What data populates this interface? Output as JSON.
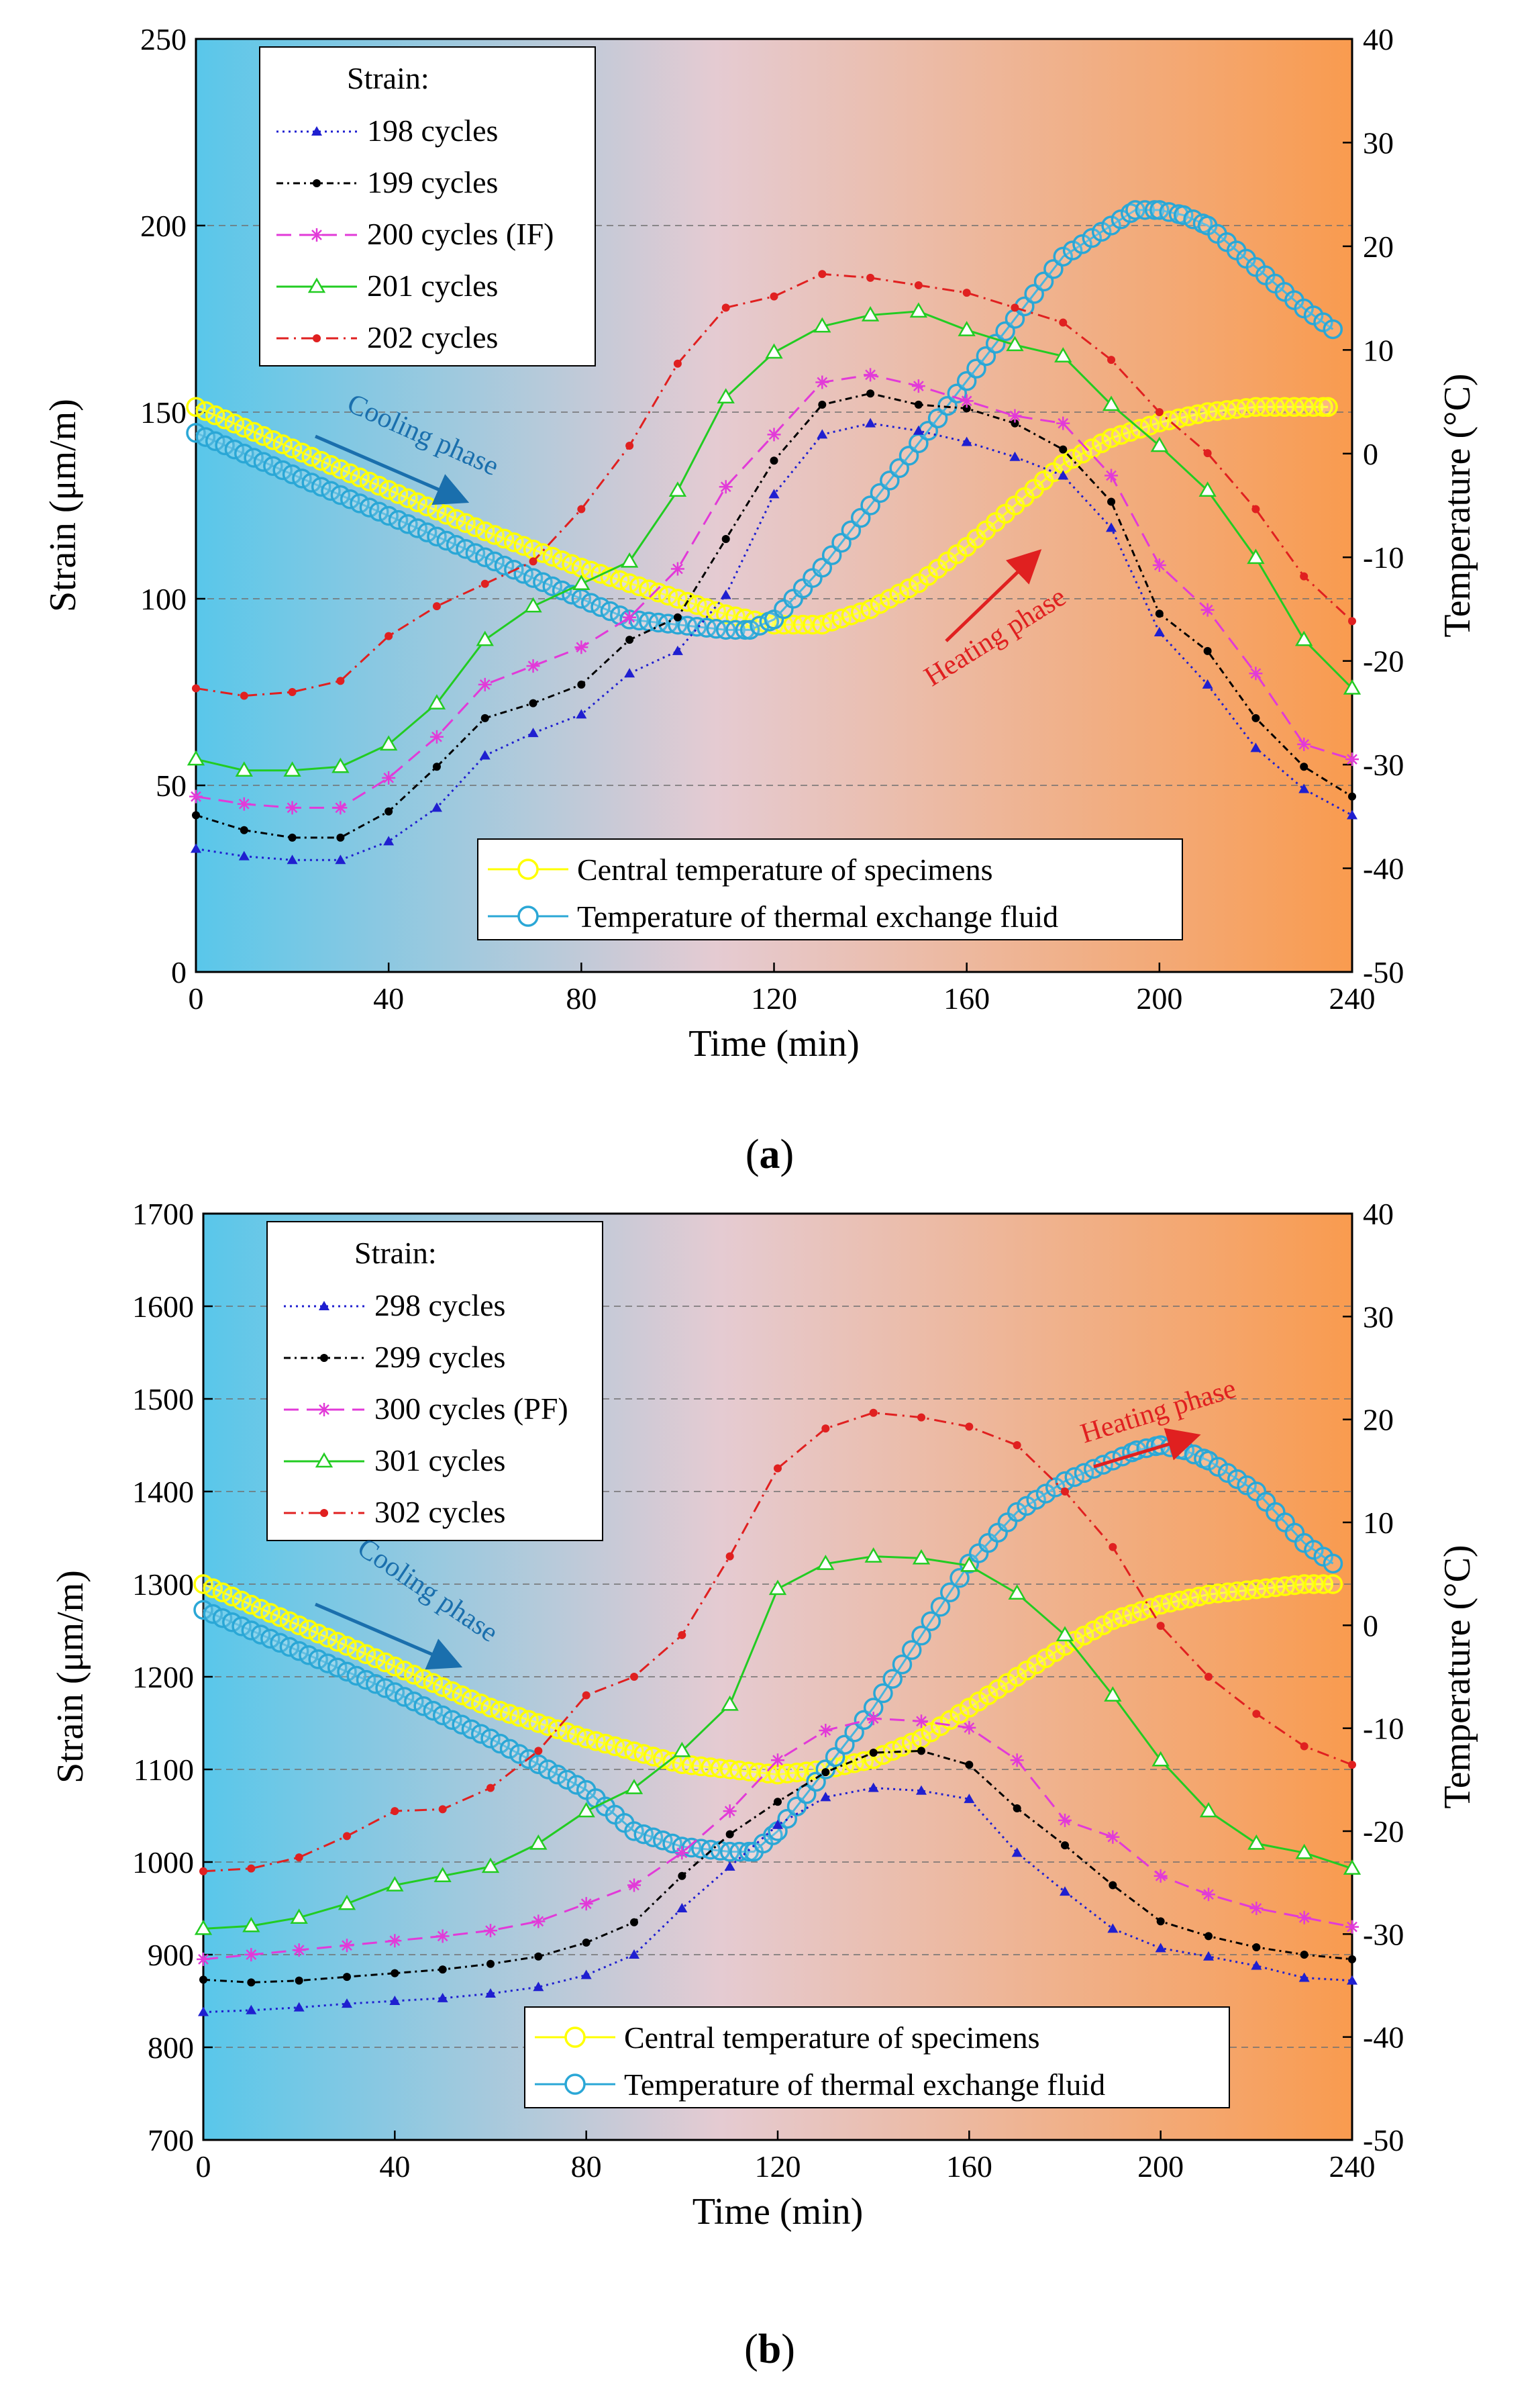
{
  "figure": {
    "panels": [
      {
        "caption_letter": "a",
        "legend_title": "Strain:",
        "annotations": [
          "Cooling phase",
          "Heating phase"
        ],
        "temp_legend": [
          "Central temperature of specimens",
          "Temperature of thermal exchange fluid"
        ]
      },
      {
        "caption_letter": "b",
        "legend_title": "Strain:",
        "annotations": [
          "Cooling phase",
          "Heating phase"
        ],
        "temp_legend": [
          "Central temperature of specimens",
          "Temperature of thermal exchange fluid"
        ]
      }
    ]
  },
  "colors": {
    "cool": "#5bc8ea",
    "warm": "#f9a056",
    "blue_series": "#1f1fd0",
    "black_series": "#000000",
    "magenta_series": "#e23ad8",
    "green_series": "#22cc22",
    "red_series": "#e02020",
    "central_temp": "#ffff00",
    "fluid_temp": "#2aa7d6",
    "cooling_arrow": "#1a6fad",
    "heating_arrow": "#e02020"
  },
  "chart_data": [
    {
      "type": "line",
      "id": "a",
      "xlabel": "Time (min)",
      "ylabel": "Strain (μm/m)",
      "y2label": "Temperature (°C)",
      "xlim": [
        0,
        240
      ],
      "ylim": [
        0,
        250
      ],
      "y2lim": [
        -50,
        40
      ],
      "xticks": [
        0,
        40,
        80,
        120,
        160,
        200,
        240
      ],
      "yticks": [
        0,
        50,
        100,
        150,
        200,
        250
      ],
      "y2ticks": [
        -50,
        -40,
        -30,
        -20,
        -10,
        0,
        10,
        20,
        30,
        40
      ],
      "grid_y": [
        50,
        100,
        150,
        200
      ],
      "x": [
        0,
        10,
        20,
        30,
        40,
        50,
        60,
        70,
        80,
        90,
        100,
        110,
        120,
        130,
        140,
        150,
        160,
        170,
        180,
        190,
        200,
        210,
        220,
        230,
        240
      ],
      "series": [
        {
          "name": "198 cycles",
          "style": "blue-dotted-triangle",
          "values": [
            33,
            31,
            30,
            30,
            35,
            44,
            58,
            64,
            69,
            80,
            86,
            101,
            128,
            144,
            147,
            145,
            142,
            138,
            133,
            119,
            91,
            77,
            60,
            49,
            42
          ]
        },
        {
          "name": "199 cycles",
          "style": "black-dashdot-dot",
          "values": [
            42,
            38,
            36,
            36,
            43,
            55,
            68,
            72,
            77,
            89,
            95,
            116,
            137,
            152,
            155,
            152,
            151,
            147,
            140,
            126,
            96,
            86,
            68,
            55,
            47
          ]
        },
        {
          "name": "200 cycles (IF)",
          "style": "magenta-dashed-star",
          "values": [
            47,
            45,
            44,
            44,
            52,
            63,
            77,
            82,
            87,
            95,
            108,
            130,
            144,
            158,
            160,
            157,
            153,
            149,
            147,
            133,
            109,
            97,
            80,
            61,
            57
          ]
        },
        {
          "name": "201 cycles",
          "style": "green-solid-opentriangle",
          "values": [
            57,
            54,
            54,
            55,
            61,
            72,
            89,
            98,
            104,
            110,
            129,
            154,
            166,
            173,
            176,
            177,
            172,
            168,
            165,
            152,
            141,
            129,
            111,
            89,
            76
          ]
        },
        {
          "name": "202 cycles",
          "style": "red-dashdot-dot",
          "values": [
            76,
            74,
            75,
            78,
            90,
            98,
            104,
            110,
            124,
            141,
            163,
            178,
            181,
            187,
            186,
            184,
            182,
            178,
            174,
            164,
            150,
            139,
            124,
            106,
            94
          ]
        }
      ],
      "temperature_series": [
        {
          "name": "Central temperature of specimens",
          "x": [
            0,
            20,
            40,
            60,
            80,
            100,
            110,
            120,
            130,
            140,
            150,
            160,
            170,
            180,
            190,
            200,
            210,
            220,
            230,
            235
          ],
          "values": [
            4.5,
            0.5,
            -3.5,
            -7.5,
            -11,
            -14,
            -15.5,
            -16.5,
            -16.5,
            -15,
            -12.5,
            -9,
            -5,
            -1,
            1.5,
            3,
            4,
            4.5,
            4.5,
            4.5
          ]
        },
        {
          "name": "Temperature of thermal exchange fluid",
          "x": [
            0,
            20,
            40,
            60,
            80,
            90,
            100,
            110,
            115,
            120,
            130,
            140,
            150,
            160,
            170,
            180,
            190,
            195,
            200,
            205,
            210,
            220,
            230,
            236
          ],
          "values": [
            2,
            -2,
            -6,
            -10,
            -14,
            -16,
            -16.5,
            -17,
            -17,
            -16,
            -11,
            -5,
            1,
            7,
            13,
            19,
            22,
            23.5,
            23.5,
            23,
            22,
            18,
            14,
            12
          ]
        }
      ]
    },
    {
      "type": "line",
      "id": "b",
      "xlabel": "Time (min)",
      "ylabel": "Strain (μm/m)",
      "y2label": "Temperature (°C)",
      "xlim": [
        0,
        240
      ],
      "ylim": [
        700,
        1700
      ],
      "y2lim": [
        -50,
        40
      ],
      "xticks": [
        0,
        40,
        80,
        120,
        160,
        200,
        240
      ],
      "yticks": [
        700,
        800,
        900,
        1000,
        1100,
        1200,
        1300,
        1400,
        1500,
        1600,
        1700
      ],
      "y2ticks": [
        -50,
        -40,
        -30,
        -20,
        -10,
        0,
        10,
        20,
        30,
        40
      ],
      "grid_y": [
        800,
        900,
        1000,
        1100,
        1200,
        1300,
        1400,
        1500,
        1600
      ],
      "x": [
        0,
        10,
        20,
        30,
        40,
        50,
        60,
        70,
        80,
        90,
        100,
        110,
        120,
        130,
        140,
        150,
        160,
        170,
        180,
        190,
        200,
        210,
        220,
        230,
        240
      ],
      "series": [
        {
          "name": "298 cycles",
          "style": "blue-dotted-triangle",
          "values": [
            838,
            840,
            843,
            847,
            850,
            853,
            858,
            865,
            878,
            900,
            950,
            995,
            1040,
            1070,
            1080,
            1077,
            1068,
            1010,
            968,
            928,
            907,
            898,
            888,
            875,
            872
          ]
        },
        {
          "name": "299 cycles",
          "style": "black-dashdot-dot",
          "values": [
            873,
            870,
            872,
            876,
            880,
            884,
            890,
            898,
            913,
            935,
            985,
            1030,
            1065,
            1097,
            1118,
            1120,
            1105,
            1058,
            1018,
            975,
            936,
            920,
            908,
            900,
            895
          ]
        },
        {
          "name": "300 cycles (PF)",
          "style": "magenta-dashed-star",
          "values": [
            895,
            900,
            905,
            910,
            915,
            920,
            926,
            936,
            955,
            975,
            1010,
            1055,
            1110,
            1142,
            1155,
            1152,
            1145,
            1110,
            1045,
            1027,
            985,
            965,
            950,
            940,
            930
          ]
        },
        {
          "name": "301 cycles",
          "style": "green-solid-opentriangle",
          "values": [
            928,
            931,
            940,
            955,
            975,
            985,
            995,
            1020,
            1055,
            1080,
            1120,
            1170,
            1295,
            1322,
            1330,
            1328,
            1320,
            1290,
            1245,
            1180,
            1110,
            1055,
            1020,
            1010,
            993
          ]
        },
        {
          "name": "302 cycles",
          "style": "red-dashdot-dot",
          "values": [
            990,
            993,
            1005,
            1028,
            1055,
            1057,
            1080,
            1120,
            1180,
            1200,
            1245,
            1330,
            1425,
            1468,
            1485,
            1480,
            1470,
            1450,
            1400,
            1340,
            1255,
            1200,
            1160,
            1125,
            1105
          ]
        }
      ],
      "temperature_series": [
        {
          "name": "Central temperature of specimens",
          "x": [
            0,
            20,
            40,
            60,
            80,
            100,
            110,
            120,
            130,
            140,
            150,
            160,
            170,
            180,
            190,
            200,
            210,
            220,
            230,
            236
          ],
          "values": [
            4,
            0,
            -4,
            -8,
            -11,
            -13.5,
            -14,
            -14.5,
            -14,
            -13,
            -11,
            -8,
            -5,
            -2,
            0.5,
            2,
            3,
            3.5,
            4,
            4
          ]
        },
        {
          "name": "Temperature of thermal exchange fluid",
          "x": [
            0,
            20,
            40,
            60,
            80,
            90,
            100,
            110,
            115,
            120,
            130,
            140,
            150,
            160,
            170,
            180,
            190,
            195,
            200,
            205,
            210,
            220,
            230,
            236
          ],
          "values": [
            1.5,
            -2.5,
            -6.5,
            -11,
            -16,
            -20,
            -21.5,
            -22,
            -22,
            -20,
            -14,
            -8,
            -1,
            6,
            11,
            14,
            16,
            17,
            17.5,
            17,
            16,
            13,
            8,
            6
          ]
        }
      ]
    }
  ]
}
